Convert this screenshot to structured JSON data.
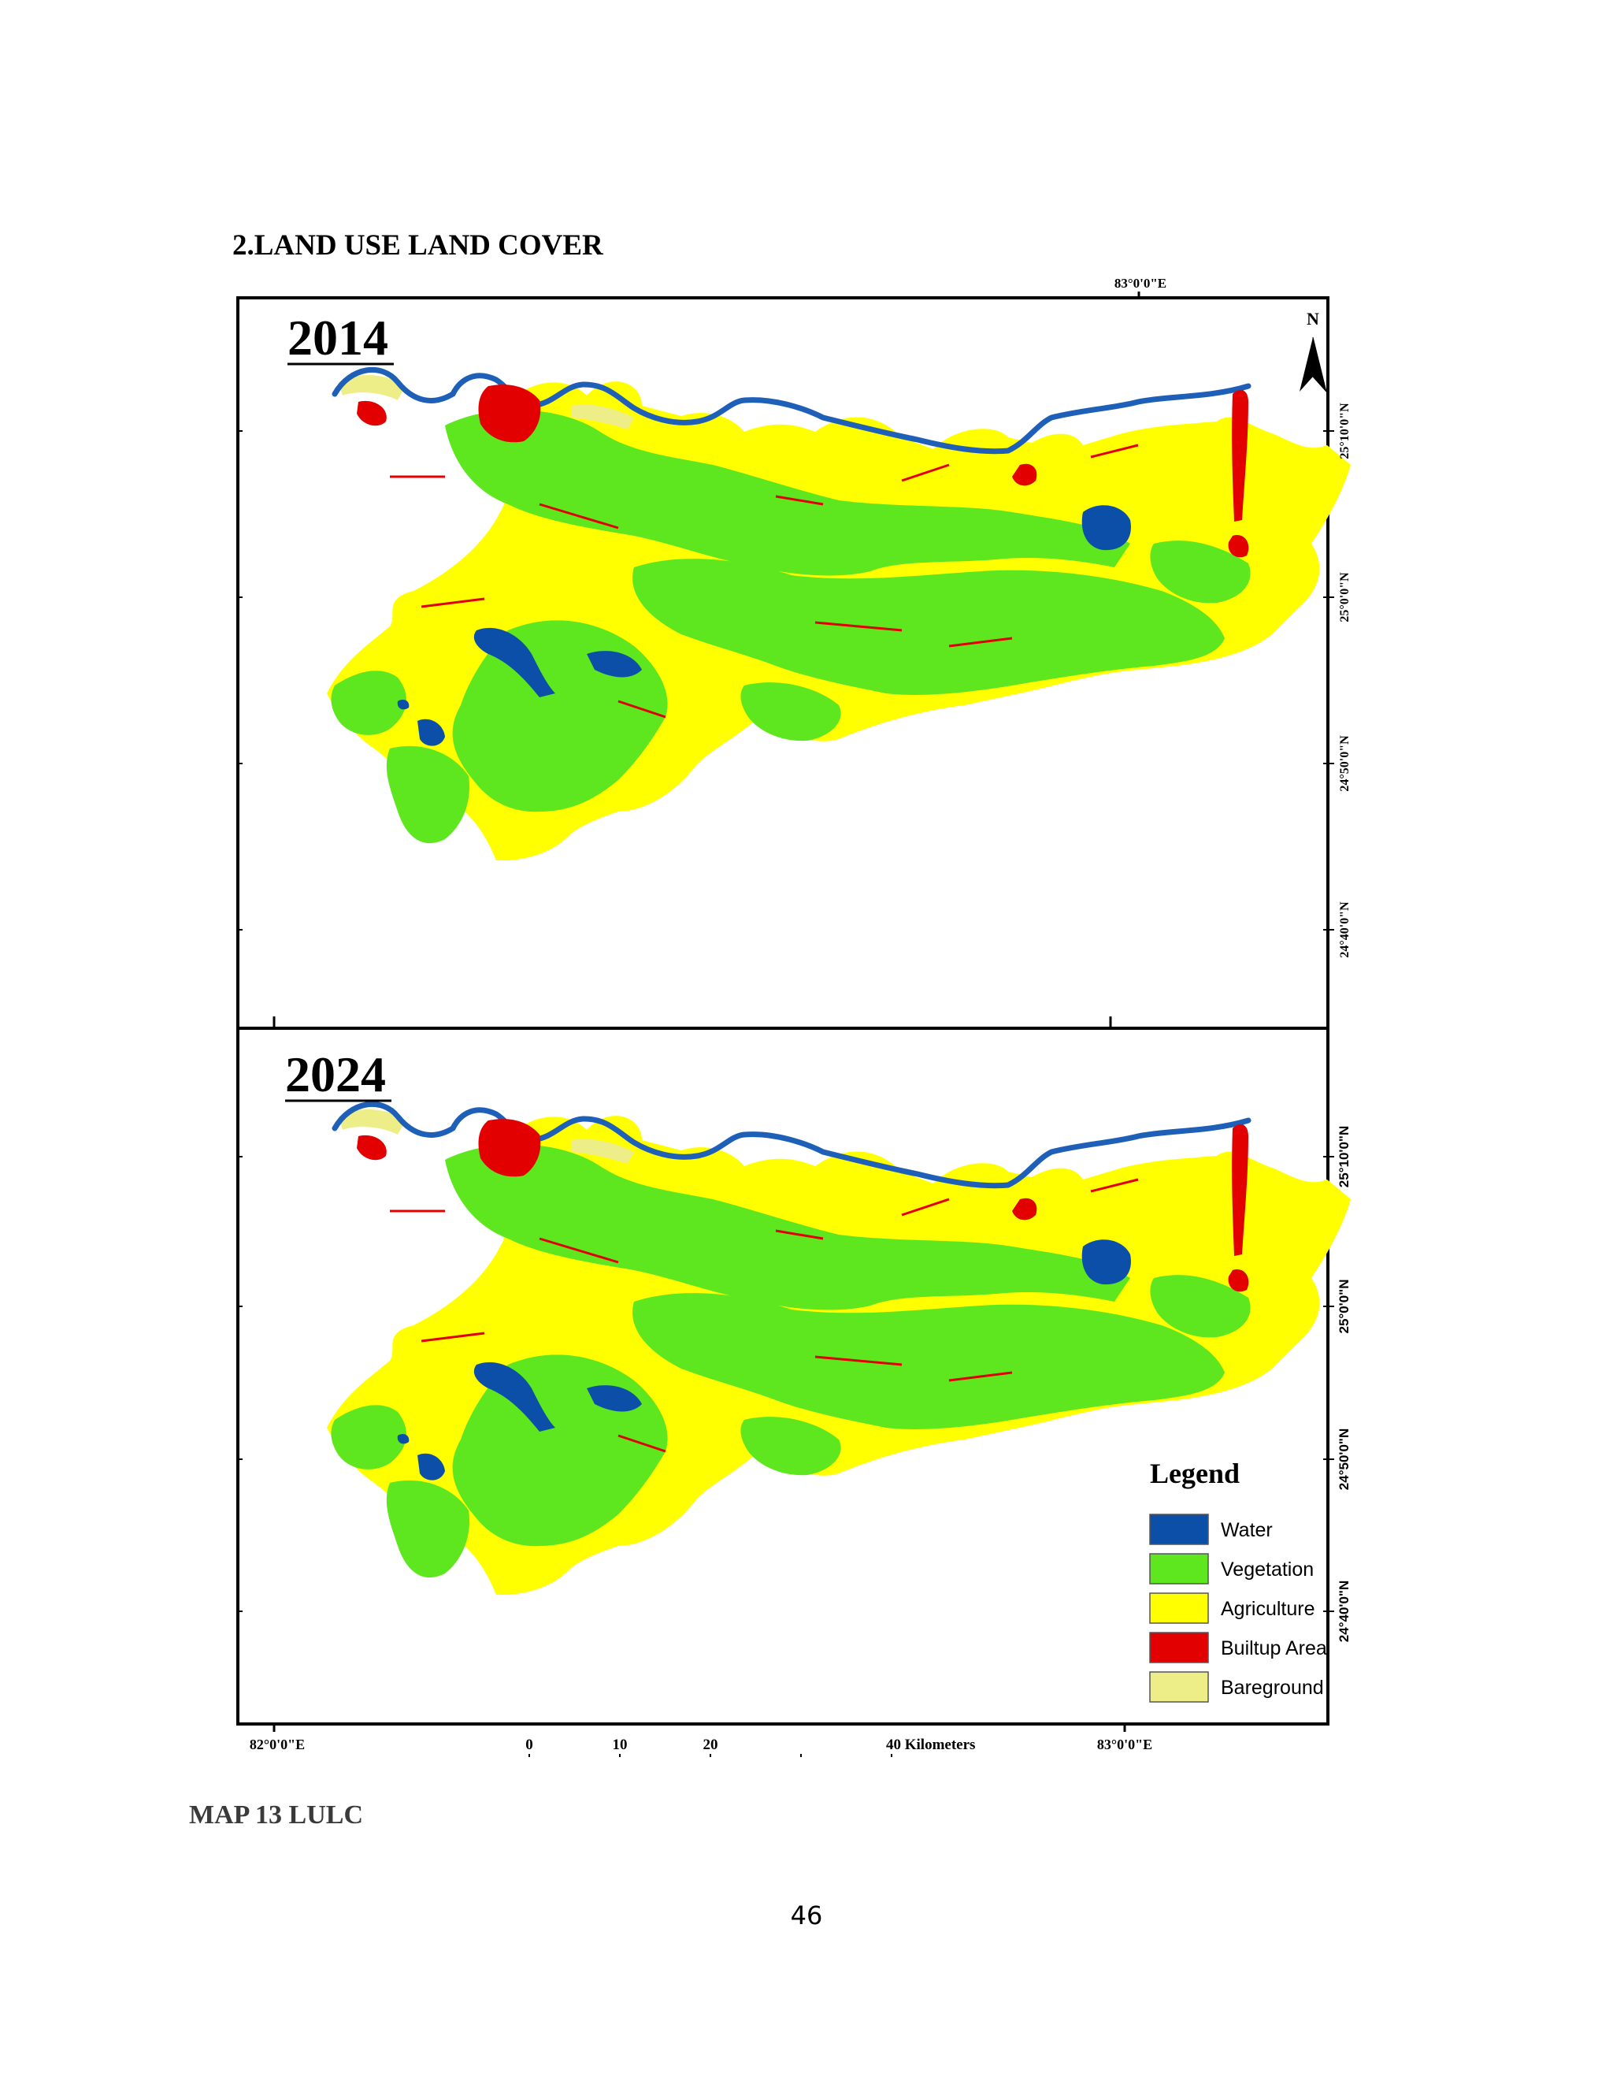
{
  "heading": "2.LAND USE LAND COVER",
  "panels": [
    {
      "year": "2014",
      "lat_ticks": [
        "25°10'0\"N",
        "25°0'0\"N",
        "24°50'0\"N",
        "24°40'0\"N"
      ]
    },
    {
      "year": "2024",
      "lat_ticks": [
        "25°10'0\"N",
        "25°0'0\"N",
        "24°50'0\"N",
        "24°40'0\"N"
      ]
    }
  ],
  "top_lon_tick": "83°0'0\"E",
  "bottom_lon_ticks": [
    "82°0'0\"E",
    "83°0'0\"E"
  ],
  "north_arrow_label": "N",
  "scale_bar": {
    "labels": [
      "0",
      "10",
      "20",
      "40 Kilometers"
    ]
  },
  "legend": {
    "title": "Legend",
    "items": [
      {
        "label": "Water",
        "color": "#0b4fa8"
      },
      {
        "label": "Vegetation",
        "color": "#5ee61e"
      },
      {
        "label": "Agriculture",
        "color": "#ffff00"
      },
      {
        "label": "Builtup Area",
        "color": "#e20000"
      },
      {
        "label": "Bareground",
        "color": "#eeee88"
      }
    ]
  },
  "caption": "MAP 13 LULC",
  "page_number": "46"
}
